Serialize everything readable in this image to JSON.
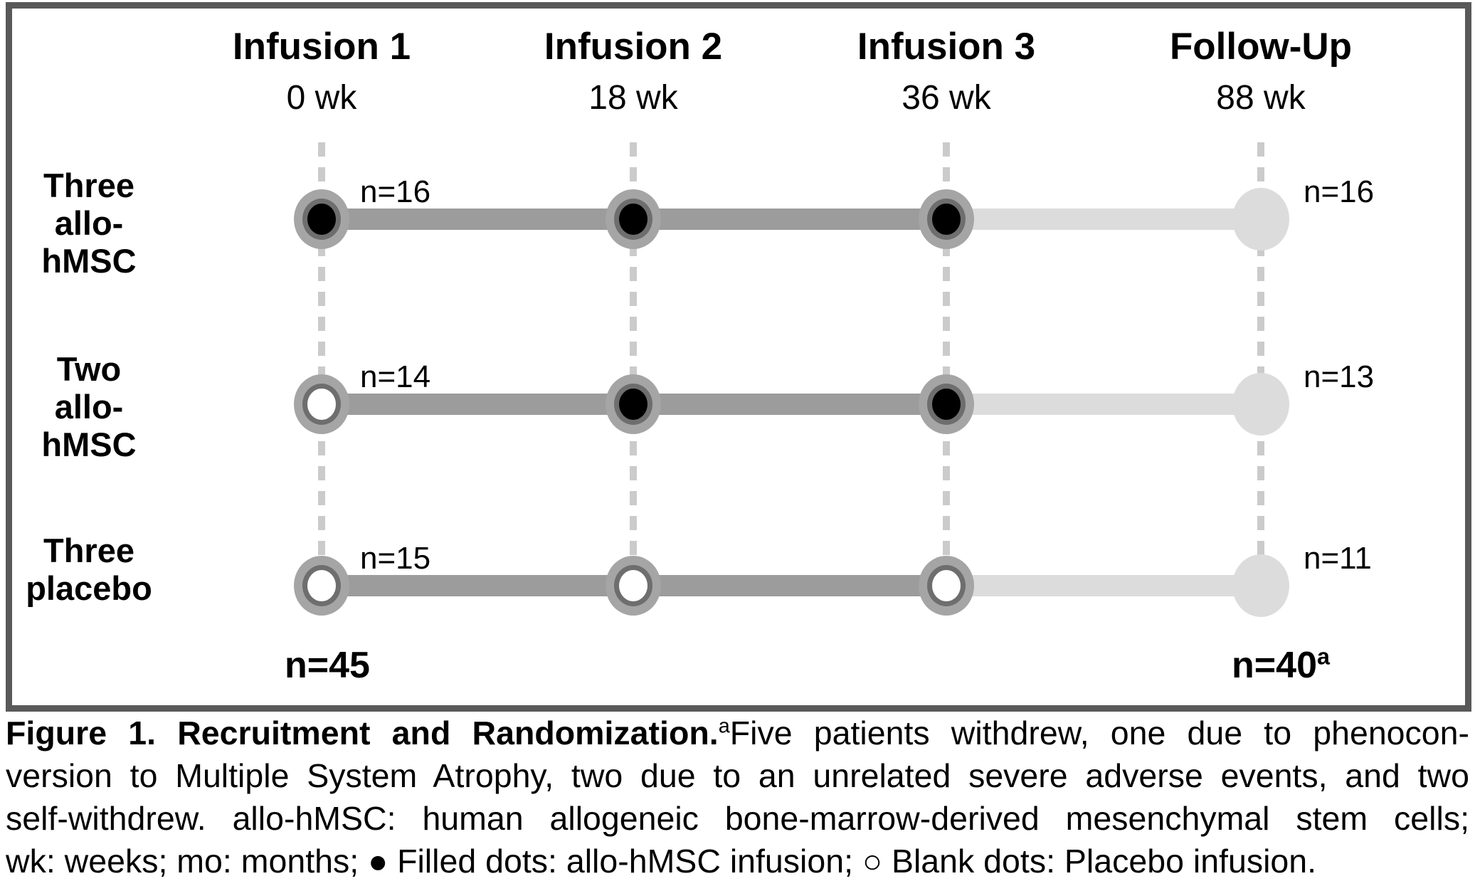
{
  "figure": {
    "columns": [
      {
        "title": "Infusion 1",
        "time": "0 wk"
      },
      {
        "title": "Infusion 2",
        "time": "18 wk"
      },
      {
        "title": "Infusion 3",
        "time": "36 wk"
      },
      {
        "title": "Follow-Up",
        "time": "88 wk"
      }
    ],
    "arms": [
      {
        "label_line1": "Three",
        "label_line2": "allo-hMSC",
        "n_start": "n=16",
        "n_end": "n=16",
        "dots": [
          "filled",
          "filled",
          "filled",
          "followup"
        ]
      },
      {
        "label_line1": "Two",
        "label_line2": "allo-hMSC",
        "n_start": "n=14",
        "n_end": "n=13",
        "dots": [
          "blank",
          "filled",
          "filled",
          "followup"
        ]
      },
      {
        "label_line1": "Three",
        "label_line2": "placebo",
        "n_start": "n=15",
        "n_end": "n=11",
        "dots": [
          "blank",
          "blank",
          "blank",
          "followup"
        ]
      }
    ],
    "totals": {
      "start": "n=45",
      "end": "n=40",
      "end_sup": "a"
    }
  },
  "caption": {
    "title_bold": "Figure 1. Recruitment and Randomization.",
    "footnote_marker": "a",
    "line1_rest": "Five patients withdrew, one due to phenocon-",
    "line2": "version to Multiple System Atrophy, two due to an unrelated severe adverse events, and two",
    "line3": "self-withdrew. allo-hMSC: human allogeneic bone-marrow-derived mesenchymal stem cells;",
    "line4": "wk: weeks; mo: months; ● Filled dots: allo-hMSC infusion; ○ Blank dots: Placebo infusion."
  },
  "colors": {
    "frame_border": "#595959",
    "timeline_solid": "#9c9c9c",
    "timeline_light": "#dcdcdc",
    "dashed_guide": "#cbcbcb",
    "dot_outer_ring": "#a5a5a5",
    "dot_inner_ring": "#6e6e6e",
    "dot_filled_center": "#000000",
    "dot_blank_center": "#ffffff",
    "followup_dot": "#dcdcdc",
    "text": "#000000"
  }
}
